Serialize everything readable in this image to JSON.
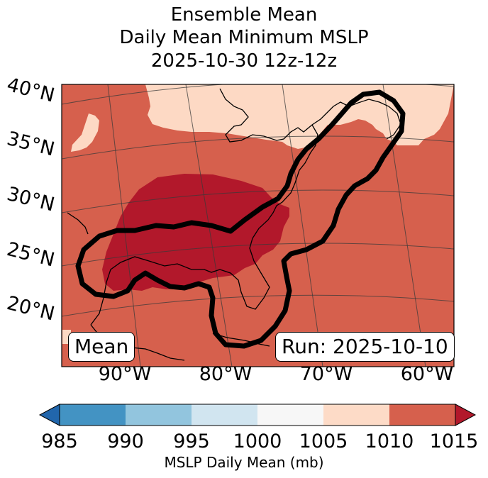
{
  "title": {
    "line1": "Ensemble Mean",
    "line2": "Daily Mean Minimum MSLP",
    "line3": "2025-10-30 12z-12z"
  },
  "map": {
    "lat_labels": [
      "40°N",
      "35°N",
      "30°N",
      "25°N",
      "20°N"
    ],
    "lon_labels": [
      "90°W",
      "80°W",
      "70°W",
      "60°W"
    ],
    "mean_label": "Mean",
    "run_label": "Run: 2025-10-10",
    "field_colors": {
      "1005_1010": "#fdd9c4",
      "1010_1015": "#d6604d",
      "above_1015": "#b2182b"
    }
  },
  "colorbar": {
    "label": "MSLP Daily Mean (mb)",
    "ticks": [
      "985",
      "990",
      "995",
      "1000",
      "1005",
      "1010",
      "1015"
    ],
    "colors": [
      "#2166ac",
      "#4393c3",
      "#92c5de",
      "#d1e5f0",
      "#f7f7f7",
      "#fddbc7",
      "#d6604d",
      "#b2182b"
    ]
  }
}
